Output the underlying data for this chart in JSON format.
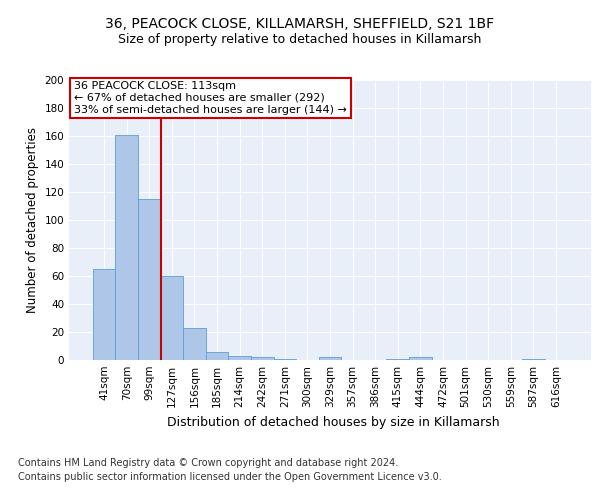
{
  "title1": "36, PEACOCK CLOSE, KILLAMARSH, SHEFFIELD, S21 1BF",
  "title2": "Size of property relative to detached houses in Killamarsh",
  "xlabel": "Distribution of detached houses by size in Killamarsh",
  "ylabel": "Number of detached properties",
  "bar_labels": [
    "41sqm",
    "70sqm",
    "99sqm",
    "127sqm",
    "156sqm",
    "185sqm",
    "214sqm",
    "242sqm",
    "271sqm",
    "300sqm",
    "329sqm",
    "357sqm",
    "386sqm",
    "415sqm",
    "444sqm",
    "472sqm",
    "501sqm",
    "530sqm",
    "559sqm",
    "587sqm",
    "616sqm"
  ],
  "bar_values": [
    65,
    161,
    115,
    60,
    23,
    6,
    3,
    2,
    1,
    0,
    2,
    0,
    0,
    1,
    2,
    0,
    0,
    0,
    0,
    1,
    0
  ],
  "bar_color": "#aec6e8",
  "bar_edge_color": "#5a9fd4",
  "vline_x": 2.5,
  "vline_color": "#cc0000",
  "annotation_text": "36 PEACOCK CLOSE: 113sqm\n← 67% of detached houses are smaller (292)\n33% of semi-detached houses are larger (144) →",
  "annotation_box_color": "#ffffff",
  "annotation_box_edge": "#cc0000",
  "footer_text": "Contains HM Land Registry data © Crown copyright and database right 2024.\nContains public sector information licensed under the Open Government Licence v3.0.",
  "ylim": [
    0,
    200
  ],
  "yticks": [
    0,
    20,
    40,
    60,
    80,
    100,
    120,
    140,
    160,
    180,
    200
  ],
  "bg_color": "#e8eff8",
  "grid_color": "#ffffff",
  "title1_fontsize": 10,
  "title2_fontsize": 9,
  "xlabel_fontsize": 9,
  "ylabel_fontsize": 8.5,
  "tick_fontsize": 7.5,
  "footer_fontsize": 7,
  "annotation_fontsize": 8
}
